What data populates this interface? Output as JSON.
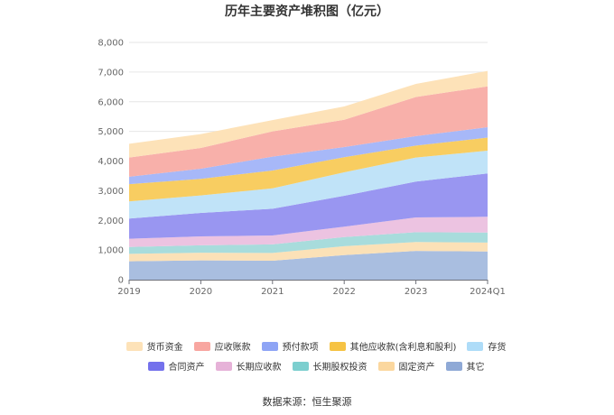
{
  "chart_data": {
    "type": "area",
    "stacked": true,
    "title": "历年主要资产堆积图（亿元）",
    "categories": [
      "2019",
      "2020",
      "2021",
      "2022",
      "2023",
      "2024Q1"
    ],
    "ylim": [
      0,
      8000
    ],
    "yticks": [
      "0",
      "1,000",
      "2,000",
      "3,000",
      "4,000",
      "5,000",
      "6,000",
      "7,000",
      "8,000"
    ],
    "grid": true,
    "legend_position": "bottom",
    "series": [
      {
        "name": "其它",
        "color": "#a9bee0",
        "values": [
          620,
          650,
          640,
          830,
          970,
          950
        ]
      },
      {
        "name": "固定资产",
        "color": "#fbe1b7",
        "values": [
          250,
          260,
          260,
          300,
          300,
          300
        ]
      },
      {
        "name": "长期股权投资",
        "color": "#a8dcdc",
        "values": [
          230,
          250,
          290,
          310,
          330,
          340
        ]
      },
      {
        "name": "长期应收款",
        "color": "#ecc3e1",
        "values": [
          280,
          300,
          300,
          350,
          500,
          530
        ]
      },
      {
        "name": "合同资产",
        "color": "#9996f1",
        "values": [
          680,
          790,
          900,
          1040,
          1210,
          1460
        ]
      },
      {
        "name": "存货",
        "color": "#c0e3f8",
        "values": [
          580,
          590,
          690,
          790,
          810,
          770
        ]
      },
      {
        "name": "其他应收款(含利息和股利)",
        "color": "#f8cd61",
        "values": [
          580,
          560,
          600,
          510,
          400,
          440
        ]
      },
      {
        "name": "预付款项",
        "color": "#a7b8f8",
        "values": [
          250,
          340,
          470,
          340,
          320,
          350
        ]
      },
      {
        "name": "应收账款",
        "color": "#f8b0aa",
        "values": [
          650,
          700,
          850,
          920,
          1320,
          1380
        ]
      },
      {
        "name": "货币资金",
        "color": "#fde2b8",
        "values": [
          460,
          470,
          380,
          450,
          440,
          520
        ]
      }
    ]
  },
  "legend": {
    "row1": [
      {
        "label": "货币资金",
        "color": "#fde2b8"
      },
      {
        "label": "应收账款",
        "color": "#f8a6a0"
      },
      {
        "label": "预付款项",
        "color": "#8ea4f5"
      },
      {
        "label": "其他应收款(含利息和股利)",
        "color": "#f6c344"
      },
      {
        "label": "存货",
        "color": "#aedcf8"
      }
    ],
    "row2": [
      {
        "label": "合同资产",
        "color": "#7471ec"
      },
      {
        "label": "长期应收款",
        "color": "#e6b2d8"
      },
      {
        "label": "长期股权投资",
        "color": "#7ccfcf"
      },
      {
        "label": "固定资产",
        "color": "#fbd79e"
      },
      {
        "label": "其它",
        "color": "#8fa9d6"
      }
    ]
  },
  "source": "数据来源：恒生聚源"
}
